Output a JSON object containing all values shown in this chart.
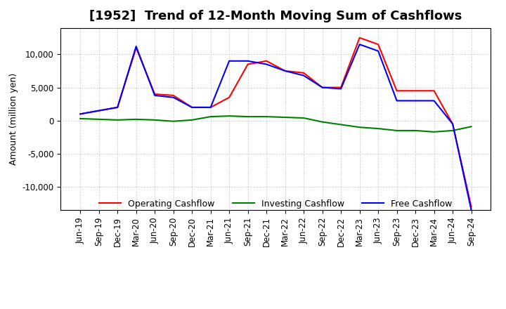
{
  "title": "[1952]  Trend of 12-Month Moving Sum of Cashflows",
  "ylabel": "Amount (million yen)",
  "legend": [
    "Operating Cashflow",
    "Investing Cashflow",
    "Free Cashflow"
  ],
  "legend_colors": [
    "#ff0000",
    "#008000",
    "#0000ff"
  ],
  "x_labels": [
    "Jun-19",
    "Sep-19",
    "Dec-19",
    "Mar-20",
    "Jun-20",
    "Sep-20",
    "Dec-20",
    "Mar-21",
    "Jun-21",
    "Sep-21",
    "Dec-21",
    "Mar-22",
    "Jun-22",
    "Sep-22",
    "Dec-22",
    "Mar-23",
    "Jun-23",
    "Sep-23",
    "Dec-23",
    "Mar-24",
    "Jun-24",
    "Sep-24"
  ],
  "operating": [
    1000,
    1500,
    2000,
    11000,
    4000,
    3800,
    2000,
    2000,
    3500,
    8500,
    9000,
    7500,
    7200,
    5000,
    5000,
    12500,
    11500,
    4500,
    4500,
    4500,
    -500,
    -13000
  ],
  "investing": [
    300,
    200,
    100,
    200,
    100,
    -100,
    100,
    600,
    700,
    600,
    600,
    500,
    400,
    -200,
    -600,
    -1000,
    -1200,
    -1500,
    -1500,
    -1700,
    -1500,
    -900
  ],
  "free": [
    1000,
    1500,
    2000,
    11200,
    3800,
    3500,
    2000,
    2000,
    9000,
    9000,
    8500,
    7500,
    6800,
    5000,
    4800,
    11500,
    10500,
    3000,
    3000,
    3000,
    -500,
    -13500
  ],
  "ylim": [
    -13500,
    14000
  ],
  "yticks": [
    -10000,
    -5000,
    0,
    5000,
    10000
  ],
  "background_color": "#ffffff",
  "grid_color": "#bbbbbb",
  "title_fontsize": 13,
  "label_fontsize": 9,
  "tick_fontsize": 8.5
}
